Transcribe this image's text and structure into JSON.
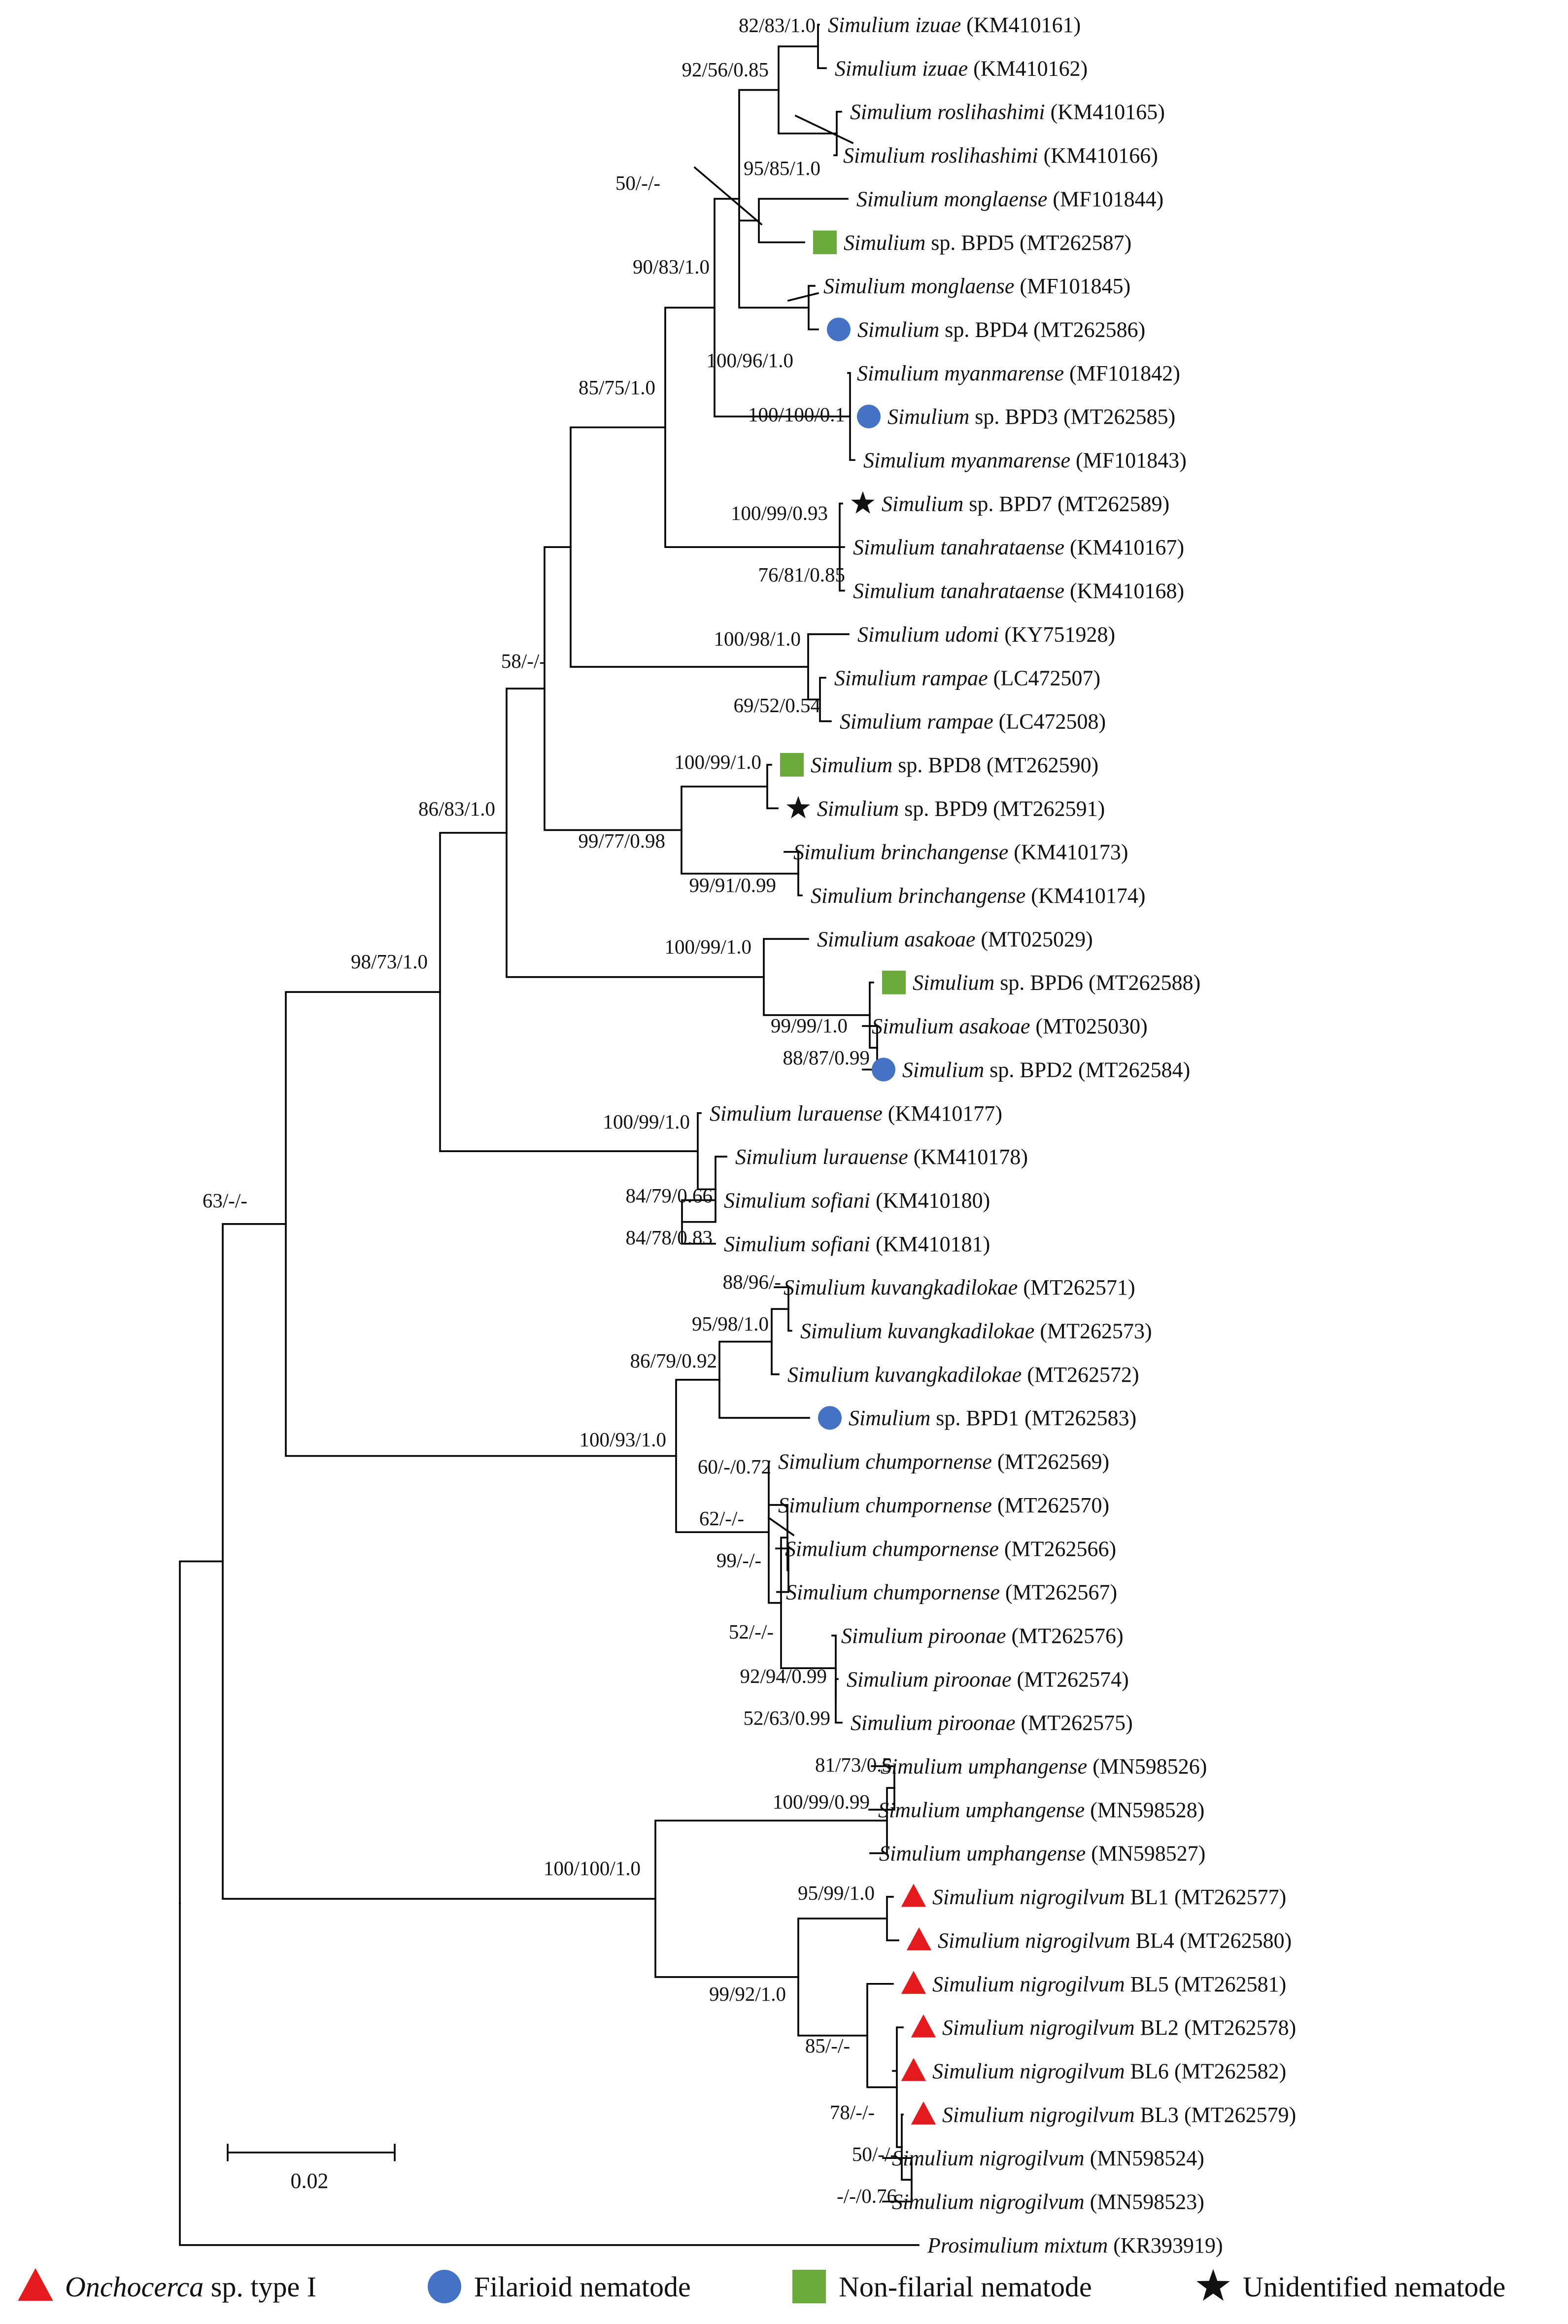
{
  "figure": {
    "type": "phylogenetic tree",
    "scale_bar": {
      "value": 0.02,
      "label": "0.02"
    },
    "legend": [
      {
        "symbol": "triangle",
        "color": "#e41a1c",
        "italic": "Onchocerca",
        "rest": " sp. type I"
      },
      {
        "symbol": "circle",
        "color": "#4472c4",
        "italic": "",
        "rest": "Filarioid nematode"
      },
      {
        "symbol": "square",
        "color": "#6aaa3a",
        "italic": "",
        "rest": "Non-filarial nematode"
      },
      {
        "symbol": "star",
        "color": "#111111",
        "italic": "",
        "rest": "Unidentified nematode"
      }
    ],
    "taxa": [
      {
        "genus": "Simulium",
        "rest": "izuae (KM410161)",
        "italic_rest": "izuae",
        "acc": "(KM410161)"
      },
      {
        "genus": "Simulium",
        "italic_rest": "izuae",
        "acc": "(KM410162)"
      },
      {
        "genus": "Simulium",
        "italic_rest": "roslihashimi",
        "acc": "(KM410165)"
      },
      {
        "genus": "Simulium",
        "italic_rest": "roslihashimi",
        "acc": "(KM410166)"
      },
      {
        "genus": "Simulium",
        "italic_rest": "monglaense",
        "acc": "(MF101844)"
      },
      {
        "genus": "Simulium",
        "plain_rest": "sp. BPD5",
        "acc": "(MT262587)",
        "marker": "square"
      },
      {
        "genus": "Simulium",
        "italic_rest": "monglaense",
        "acc": "(MF101845)"
      },
      {
        "genus": "Simulium",
        "plain_rest": "sp. BPD4",
        "acc": "(MT262586)",
        "marker": "circle"
      },
      {
        "genus": "Simulium",
        "italic_rest": "myanmarense",
        "acc": "(MF101842)"
      },
      {
        "genus": "Simulium",
        "plain_rest": "sp. BPD3",
        "acc": "(MT262585)",
        "marker": "circle"
      },
      {
        "genus": "Simulium",
        "italic_rest": "myanmarense",
        "acc": "(MF101843)"
      },
      {
        "genus": "Simulium",
        "plain_rest": "sp. BPD7",
        "acc": "(MT262589)",
        "marker": "star"
      },
      {
        "genus": "Simulium",
        "italic_rest": "tanahrataense",
        "acc": "(KM410167)"
      },
      {
        "genus": "Simulium",
        "italic_rest": "tanahrataense",
        "acc": "(KM410168)"
      },
      {
        "genus": "Simulium",
        "italic_rest": "udomi",
        "acc": "(KY751928)"
      },
      {
        "genus": "Simulium",
        "italic_rest": "rampae",
        "acc": "(LC472507)"
      },
      {
        "genus": "Simulium",
        "italic_rest": "rampae",
        "acc": "(LC472508)"
      },
      {
        "genus": "Simulium",
        "plain_rest": "sp. BPD8",
        "acc": "(MT262590)",
        "marker": "square"
      },
      {
        "genus": "Simulium",
        "plain_rest": "sp. BPD9",
        "acc": "(MT262591)",
        "marker": "star"
      },
      {
        "genus": "Simulium",
        "italic_rest": "brinchangense",
        "acc": "(KM410173)"
      },
      {
        "genus": "Simulium",
        "italic_rest": "brinchangense",
        "acc": "(KM410174)"
      },
      {
        "genus": "Simulium",
        "italic_rest": "asakoae",
        "acc": "(MT025029)"
      },
      {
        "genus": "Simulium",
        "plain_rest": "sp. BPD6",
        "acc": "(MT262588)",
        "marker": "square"
      },
      {
        "genus": "Simulium",
        "italic_rest": "asakoae",
        "acc": "(MT025030)"
      },
      {
        "genus": "Simulium",
        "plain_rest": "sp. BPD2",
        "acc": "(MT262584)",
        "marker": "circle"
      },
      {
        "genus": "Simulium",
        "italic_rest": "lurauense",
        "acc": "(KM410177)"
      },
      {
        "genus": "Simulium",
        "italic_rest": "lurauense",
        "acc": "(KM410178)"
      },
      {
        "genus": "Simulium",
        "italic_rest": "sofiani",
        "acc": "(KM410180)"
      },
      {
        "genus": "Simulium",
        "italic_rest": "sofiani",
        "acc": "(KM410181)"
      },
      {
        "genus": "Simulium",
        "italic_rest": "kuvangkadilokae",
        "acc": "(MT262571)"
      },
      {
        "genus": "Simulium",
        "italic_rest": "kuvangkadilokae",
        "acc": "(MT262573)"
      },
      {
        "genus": "Simulium",
        "italic_rest": "kuvangkadilokae",
        "acc": "(MT262572)"
      },
      {
        "genus": "Simulium",
        "plain_rest": "sp. BPD1",
        "acc": "(MT262583)",
        "marker": "circle"
      },
      {
        "genus": "Simulium",
        "italic_rest": "chumpornense",
        "acc": "(MT262569)"
      },
      {
        "genus": "Simulium",
        "italic_rest": "chumpornense",
        "acc": "(MT262570)"
      },
      {
        "genus": "Simulium",
        "italic_rest": "chumpornense",
        "acc": "(MT262566)"
      },
      {
        "genus": "Simulium",
        "italic_rest": "chumpornense",
        "acc": "(MT262567)"
      },
      {
        "genus": "Simulium",
        "italic_rest": "piroonae",
        "acc": "(MT262576)"
      },
      {
        "genus": "Simulium",
        "italic_rest": "piroonae",
        "acc": "(MT262574)"
      },
      {
        "genus": "Simulium",
        "italic_rest": "piroonae",
        "acc": "(MT262575)"
      },
      {
        "genus": "Simulium",
        "italic_rest": "umphangense",
        "acc": "(MN598526)"
      },
      {
        "genus": "Simulium",
        "italic_rest": "umphangense",
        "acc": "(MN598528)"
      },
      {
        "genus": "Simulium",
        "italic_rest": "umphangense",
        "acc": "(MN598527)"
      },
      {
        "genus": "Simulium",
        "italic_rest": "nigrogilvum",
        "plain_after": "BL1",
        "acc": "(MT262577)",
        "marker": "triangle"
      },
      {
        "genus": "Simulium",
        "italic_rest": "nigrogilvum",
        "plain_after": "BL4",
        "acc": "(MT262580)",
        "marker": "triangle"
      },
      {
        "genus": "Simulium",
        "italic_rest": "nigrogilvum",
        "plain_after": "BL5",
        "acc": "(MT262581)",
        "marker": "triangle"
      },
      {
        "genus": "Simulium",
        "italic_rest": "nigrogilvum",
        "plain_after": "BL2",
        "acc": "(MT262578)",
        "marker": "triangle"
      },
      {
        "genus": "Simulium",
        "italic_rest": "nigrogilvum",
        "plain_after": "BL6",
        "acc": "(MT262582)",
        "marker": "triangle"
      },
      {
        "genus": "Simulium",
        "italic_rest": "nigrogilvum",
        "plain_after": "BL3",
        "acc": "(MT262579)",
        "marker": "triangle"
      },
      {
        "genus": "Simulium",
        "italic_rest": "nigrogilvum",
        "acc": "(MN598524)"
      },
      {
        "genus": "Simulium",
        "italic_rest": "nigrogilvum",
        "acc": "(MN598523)"
      },
      {
        "genus": "Prosimulium",
        "italic_rest": "mixtum",
        "acc": "(KR393919)"
      }
    ],
    "support_values": [
      "82/83/1.0",
      "92/56/0.85",
      "95/85/1.0",
      "50/-/-",
      "90/83/1.0",
      "100/96/1.0",
      "100/100/0.1",
      "85/75/1.0",
      "100/99/0.93",
      "76/81/0.85",
      "100/98/1.0",
      "69/52/0.54",
      "58/-/-",
      "100/99/1.0",
      "99/77/0.98",
      "99/91/0.99",
      "86/83/1.0",
      "100/99/1.0",
      "99/99/1.0",
      "88/87/0.99",
      "98/73/1.0",
      "100/99/1.0",
      "84/79/0.66",
      "84/78/0.83",
      "63/-/-",
      "88/96/-",
      "95/98/1.0",
      "86/79/0.92",
      "100/93/1.0",
      "60/-/0.72",
      "62/-/-",
      "99/-/-",
      "52/-/-",
      "92/94/0.99",
      "52/63/0.99",
      "81/73/0.5",
      "100/99/0.99",
      "100/100/1.0",
      "95/99/1.0",
      "99/92/1.0",
      "85/-/-",
      "78/-/-",
      "50/-/-",
      "-/-/0.76"
    ]
  }
}
